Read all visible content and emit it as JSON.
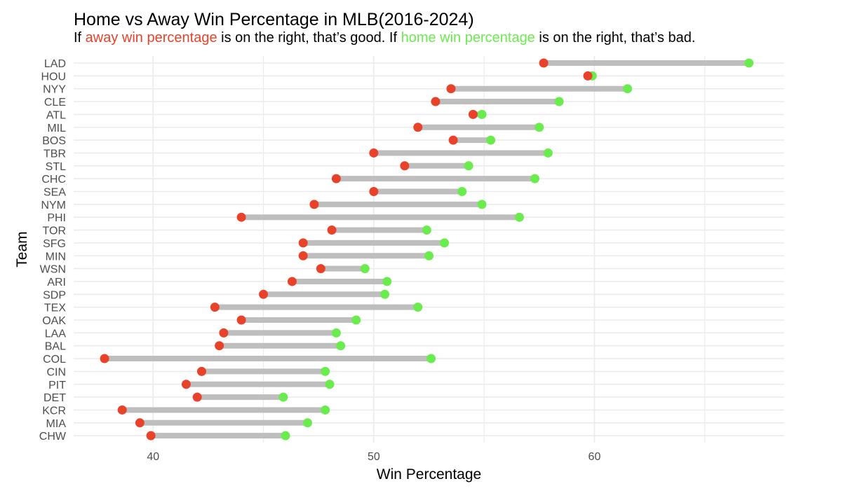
{
  "chart_data": {
    "type": "dumbbell",
    "title": "Home vs Away Win Percentage in MLB(2016-2024)",
    "subtitle": {
      "part1": "If ",
      "away_phrase": "away win percentage",
      "part2": " is on the right, that’s good. If ",
      "home_phrase": "home win percentage",
      "part3": " is on the right, that’s bad."
    },
    "xlabel": "Win Percentage",
    "ylabel": "Team",
    "xlim": [
      36.4,
      68.6
    ],
    "x_ticks": [
      40,
      50,
      60
    ],
    "grid": true,
    "colors": {
      "away": "#e8432a",
      "home": "#6bec4e",
      "segment": "#bebebe",
      "grid": "#ebebeb"
    },
    "teams": [
      {
        "team": "LAD",
        "away": 57.7,
        "home": 67.0
      },
      {
        "team": "HOU",
        "away": 59.7,
        "home": 59.9
      },
      {
        "team": "NYY",
        "away": 53.5,
        "home": 61.5
      },
      {
        "team": "CLE",
        "away": 52.8,
        "home": 58.4
      },
      {
        "team": "ATL",
        "away": 54.5,
        "home": 54.9
      },
      {
        "team": "MIL",
        "away": 52.0,
        "home": 57.5
      },
      {
        "team": "BOS",
        "away": 53.6,
        "home": 55.3
      },
      {
        "team": "TBR",
        "away": 50.0,
        "home": 57.9
      },
      {
        "team": "STL",
        "away": 51.4,
        "home": 54.3
      },
      {
        "team": "CHC",
        "away": 48.3,
        "home": 57.3
      },
      {
        "team": "SEA",
        "away": 50.0,
        "home": 54.0
      },
      {
        "team": "NYM",
        "away": 47.3,
        "home": 54.9
      },
      {
        "team": "PHI",
        "away": 44.0,
        "home": 56.6
      },
      {
        "team": "TOR",
        "away": 48.1,
        "home": 52.4
      },
      {
        "team": "SFG",
        "away": 46.8,
        "home": 53.2
      },
      {
        "team": "MIN",
        "away": 46.8,
        "home": 52.5
      },
      {
        "team": "WSN",
        "away": 47.6,
        "home": 49.6
      },
      {
        "team": "ARI",
        "away": 46.3,
        "home": 50.6
      },
      {
        "team": "SDP",
        "away": 45.0,
        "home": 50.5
      },
      {
        "team": "TEX",
        "away": 42.8,
        "home": 52.0
      },
      {
        "team": "OAK",
        "away": 44.0,
        "home": 49.2
      },
      {
        "team": "LAA",
        "away": 43.2,
        "home": 48.3
      },
      {
        "team": "BAL",
        "away": 43.0,
        "home": 48.5
      },
      {
        "team": "COL",
        "away": 37.8,
        "home": 52.6
      },
      {
        "team": "CIN",
        "away": 42.2,
        "home": 47.8
      },
      {
        "team": "PIT",
        "away": 41.5,
        "home": 48.0
      },
      {
        "team": "DET",
        "away": 42.0,
        "home": 45.9
      },
      {
        "team": "KCR",
        "away": 38.6,
        "home": 47.8
      },
      {
        "team": "MIA",
        "away": 39.4,
        "home": 47.0
      },
      {
        "team": "CHW",
        "away": 39.9,
        "home": 46.0
      }
    ]
  }
}
